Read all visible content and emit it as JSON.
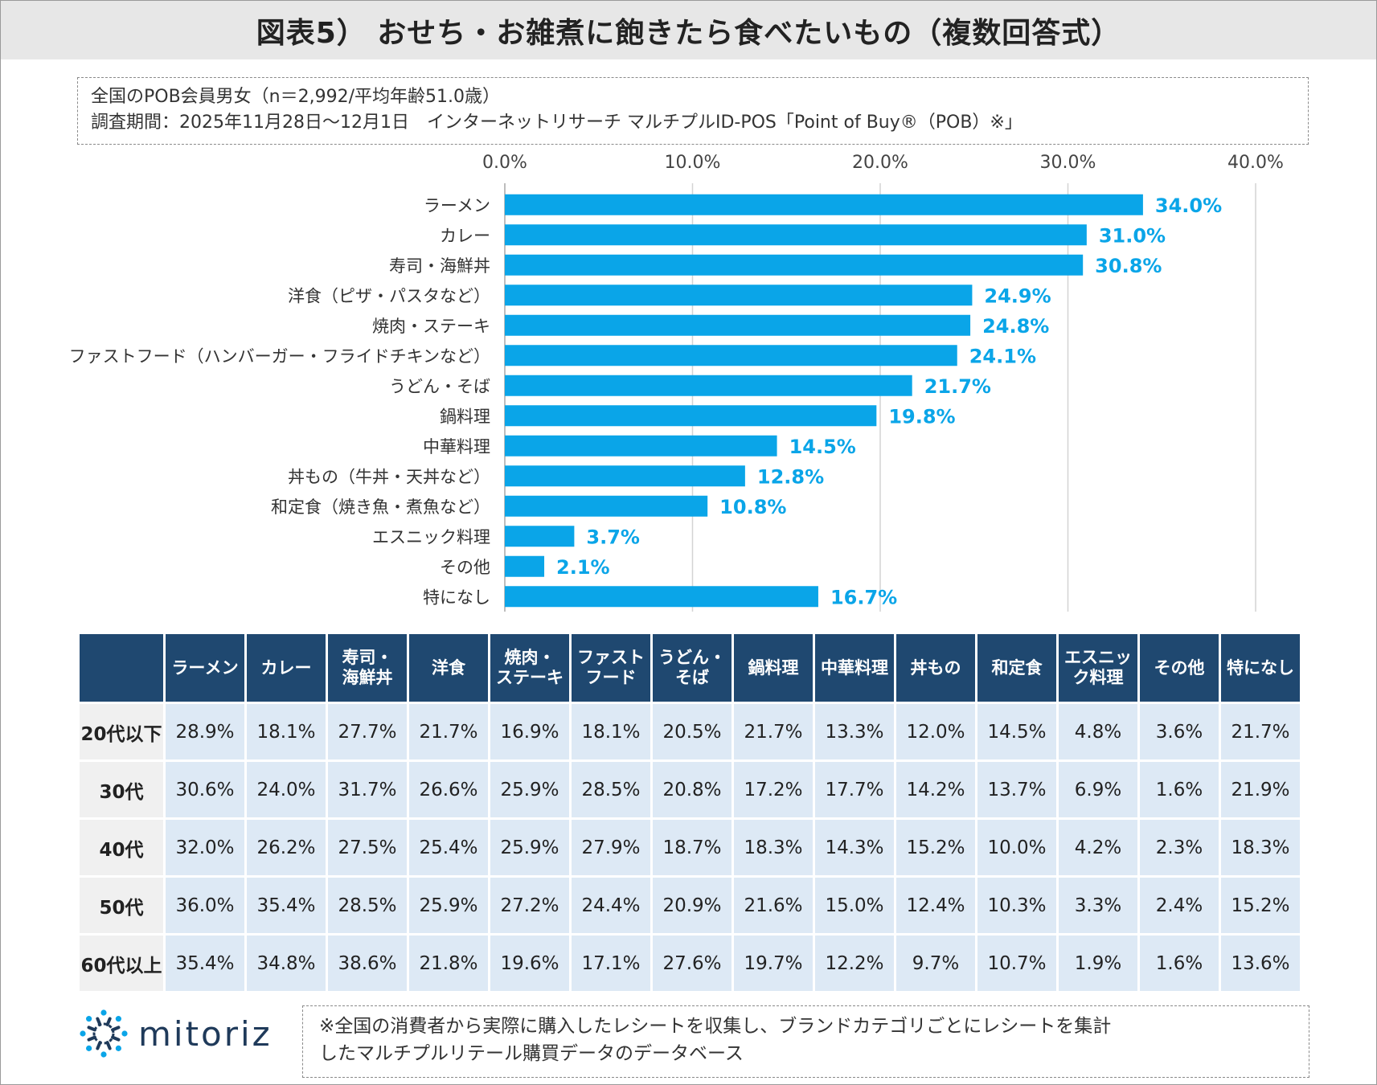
{
  "title": "図表5） おせち・お雑煮に飽きたら食べたいもの（複数回答式）",
  "info": {
    "line1": "全国のPOB会員男女（n＝2,992/平均年齢51.0歳）",
    "line2": "調査期間：2025年11月28日～12月1日　インターネットリサーチ マルチプルID-POS「Point of Buy®（POB）※」"
  },
  "chart_data": {
    "type": "bar",
    "orientation": "horizontal",
    "categories": [
      "ラーメン",
      "カレー",
      "寿司・海鮮丼",
      "洋食（ピザ・パスタなど）",
      "焼肉・ステーキ",
      "ファストフード（ハンバーガー・フライドチキンなど）",
      "うどん・そば",
      "鍋料理",
      "中華料理",
      "丼もの（牛丼・天丼など）",
      "和定食（焼き魚・煮魚など）",
      "エスニック料理",
      "その他",
      "特になし"
    ],
    "values": [
      34.0,
      31.0,
      30.8,
      24.9,
      24.8,
      24.1,
      21.7,
      19.8,
      14.5,
      12.8,
      10.8,
      3.7,
      2.1,
      16.7
    ],
    "value_labels": [
      "34.0%",
      "31.0%",
      "30.8%",
      "24.9%",
      "24.8%",
      "24.1%",
      "21.7%",
      "19.8%",
      "14.5%",
      "12.8%",
      "10.8%",
      "3.7%",
      "2.1%",
      "16.7%"
    ],
    "xlim": [
      0,
      40
    ],
    "ticks": [
      0,
      10,
      20,
      30,
      40
    ],
    "tick_labels": [
      "0.0%",
      "10.0%",
      "20.0%",
      "30.0%",
      "40.0%"
    ],
    "axis_position": "top",
    "grid": true,
    "bar_color": "#0aa5e8",
    "label_color": "#0aa5e8"
  },
  "table": {
    "headers": [
      "ラーメン",
      "カレー",
      "寿司・\n海鮮丼",
      "洋食",
      "焼肉・\nステーキ",
      "ファスト\nフード",
      "うどん・\nそば",
      "鍋料理",
      "中華料理",
      "丼もの",
      "和定食",
      "エスニッ\nク料理",
      "その他",
      "特になし"
    ],
    "rows": [
      {
        "label": "20代以下",
        "values": [
          "28.9%",
          "18.1%",
          "27.7%",
          "21.7%",
          "16.9%",
          "18.1%",
          "20.5%",
          "21.7%",
          "13.3%",
          "12.0%",
          "14.5%",
          "4.8%",
          "3.6%",
          "21.7%"
        ]
      },
      {
        "label": "30代",
        "values": [
          "30.6%",
          "24.0%",
          "31.7%",
          "26.6%",
          "25.9%",
          "28.5%",
          "20.8%",
          "17.2%",
          "17.7%",
          "14.2%",
          "13.7%",
          "6.9%",
          "1.6%",
          "21.9%"
        ]
      },
      {
        "label": "40代",
        "values": [
          "32.0%",
          "26.2%",
          "27.5%",
          "25.4%",
          "25.9%",
          "27.9%",
          "18.7%",
          "18.3%",
          "14.3%",
          "15.2%",
          "10.0%",
          "4.2%",
          "2.3%",
          "18.3%"
        ]
      },
      {
        "label": "50代",
        "values": [
          "36.0%",
          "35.4%",
          "28.5%",
          "25.9%",
          "27.2%",
          "24.4%",
          "20.9%",
          "21.6%",
          "15.0%",
          "12.4%",
          "10.3%",
          "3.3%",
          "2.4%",
          "15.2%"
        ]
      },
      {
        "label": "60代以上",
        "values": [
          "35.4%",
          "34.8%",
          "38.6%",
          "21.8%",
          "19.6%",
          "17.1%",
          "27.6%",
          "19.7%",
          "12.2%",
          "9.7%",
          "10.7%",
          "1.9%",
          "1.6%",
          "13.6%"
        ]
      }
    ],
    "header_color": "#1f4870",
    "cell_color": "#dde9f5"
  },
  "logo": {
    "text": "mitoriz",
    "icon": "starburst-logo-icon",
    "color": "#1f3a5a",
    "accent": "#0aa5e8"
  },
  "footnote": {
    "line1": "※全国の消費者から実際に購入したレシートを収集し、ブランドカテゴリごとにレシートを集計",
    "line2": "したマルチプルリテール購買データのデータベース"
  }
}
